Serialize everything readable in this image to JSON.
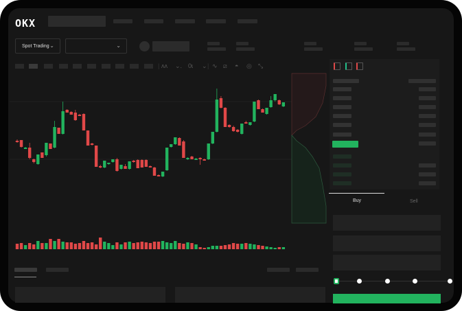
{
  "header": {
    "logo": "OKX",
    "nav_items": 4
  },
  "toolbar": {
    "market_dropdown": "Spot Trading",
    "pair_dropdown": "",
    "icons": [
      "indicator-icon",
      "line-style-icon",
      "crosshair-icon",
      "wave-icon",
      "ruler-icon",
      "camera-icon",
      "settings-icon",
      "fullscreen-icon"
    ]
  },
  "orderbook": {
    "icons": [
      "both-sides-icon",
      "bids-icon",
      "asks-icon"
    ]
  },
  "trade": {
    "tabs": [
      {
        "label": "Buy",
        "active": true
      },
      {
        "label": "Sell",
        "active": false
      }
    ],
    "slider_percent": 0
  },
  "colors": {
    "up": "#22b35e",
    "down": "#e04848",
    "background": "#171717"
  },
  "chart_data": {
    "type": "candlestick",
    "ohlc": [
      [
        95,
        97,
        92,
        93
      ],
      [
        96,
        96,
        85,
        86
      ],
      [
        85,
        86,
        84,
        85
      ],
      [
        85,
        92,
        68,
        70
      ],
      [
        68,
        69,
        62,
        64
      ],
      [
        61,
        75,
        60,
        75
      ],
      [
        78,
        78,
        70,
        70
      ],
      [
        74,
        92,
        72,
        92
      ],
      [
        91,
        91,
        83,
        83
      ],
      [
        85,
        124,
        84,
        115
      ],
      [
        114,
        114,
        105,
        105
      ],
      [
        105,
        152,
        104,
        138
      ],
      [
        140,
        141,
        136,
        136
      ],
      [
        137,
        138,
        133,
        133
      ],
      [
        136,
        140,
        124,
        125
      ],
      [
        133,
        134,
        131,
        131
      ],
      [
        134,
        135,
        110,
        110
      ],
      [
        110,
        110,
        88,
        88
      ],
      [
        91,
        92,
        88,
        89
      ],
      [
        88,
        88,
        57,
        57
      ],
      [
        58,
        60,
        55,
        56
      ],
      [
        56,
        66,
        55,
        66
      ],
      [
        61,
        63,
        60,
        63
      ],
      [
        64,
        68,
        63,
        68
      ],
      [
        68,
        70,
        50,
        51
      ],
      [
        54,
        60,
        53,
        60
      ],
      [
        58,
        61,
        54,
        54
      ],
      [
        54,
        65,
        53,
        65
      ],
      [
        66,
        67,
        63,
        64
      ],
      [
        67,
        68,
        55,
        55
      ],
      [
        67,
        68,
        56,
        56
      ],
      [
        67,
        68,
        57,
        57
      ],
      [
        58,
        59,
        57,
        57
      ],
      [
        56,
        57,
        44,
        44
      ],
      [
        45,
        46,
        43,
        43
      ],
      [
        43,
        50,
        42,
        50
      ],
      [
        52,
        85,
        51,
        85
      ],
      [
        86,
        90,
        85,
        90
      ],
      [
        90,
        100,
        89,
        100
      ],
      [
        99,
        100,
        88,
        88
      ],
      [
        94,
        96,
        70,
        70
      ],
      [
        69,
        71,
        67,
        70
      ],
      [
        72,
        73,
        68,
        68
      ],
      [
        69,
        70,
        67,
        69
      ],
      [
        70,
        71,
        60,
        69
      ],
      [
        68,
        69,
        66,
        67
      ],
      [
        68,
        91,
        67,
        91
      ],
      [
        91,
        108,
        90,
        108
      ],
      [
        108,
        171,
        107,
        155
      ],
      [
        157,
        160,
        142,
        143
      ],
      [
        143,
        144,
        115,
        115
      ],
      [
        118,
        119,
        114,
        115
      ],
      [
        115,
        117,
        108,
        109
      ],
      [
        111,
        112,
        107,
        108
      ],
      [
        105,
        120,
        104,
        120
      ],
      [
        122,
        124,
        120,
        120
      ],
      [
        118,
        122,
        117,
        122
      ],
      [
        123,
        152,
        122,
        152
      ],
      [
        154,
        155,
        141,
        141
      ],
      [
        141,
        142,
        136,
        136
      ],
      [
        134,
        143,
        133,
        143
      ],
      [
        144,
        160,
        143,
        154
      ],
      [
        154,
        163,
        152,
        163
      ],
      [
        154,
        155,
        147,
        148
      ],
      [
        145,
        151,
        144,
        151
      ]
    ],
    "volume": [
      8,
      9,
      6,
      9,
      7,
      12,
      9,
      9,
      15,
      12,
      15,
      11,
      10,
      10,
      8,
      9,
      12,
      9,
      10,
      7,
      17,
      11,
      9,
      6,
      10,
      7,
      10,
      11,
      9,
      10,
      11,
      10,
      9,
      11,
      11,
      12,
      10,
      9,
      12,
      9,
      8,
      10,
      9,
      7,
      3,
      2,
      3,
      5,
      5,
      5,
      6,
      7,
      9,
      8,
      8,
      9,
      8,
      7,
      6,
      5,
      4,
      3,
      2,
      3,
      3
    ],
    "grid": true
  }
}
